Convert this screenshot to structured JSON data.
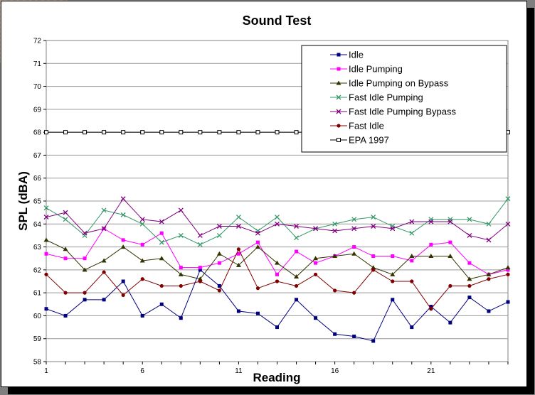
{
  "chart_data": {
    "type": "line",
    "title": "Sound Test",
    "xlabel": "Reading",
    "ylabel": "SPL (dBA)",
    "ylim": [
      58,
      72
    ],
    "y_ticks": [
      "58",
      "59",
      "60",
      "61",
      "62",
      "63",
      "64",
      "65",
      "66",
      "67",
      "68",
      "69",
      "70",
      "71",
      "72"
    ],
    "x": [
      1,
      2,
      3,
      4,
      5,
      6,
      7,
      8,
      9,
      10,
      11,
      12,
      13,
      14,
      15,
      16,
      17,
      18,
      19,
      20,
      21,
      22,
      23,
      24,
      25
    ],
    "x_tick_labels": [
      {
        "x": 1,
        "label": "1"
      },
      {
        "x": 6,
        "label": "6"
      },
      {
        "x": 11,
        "label": "11"
      },
      {
        "x": 16,
        "label": "16"
      },
      {
        "x": 21,
        "label": "21"
      }
    ],
    "grid": "horizontal",
    "legend_position": "top-right",
    "series": [
      {
        "name": "Idle",
        "color": "#000080",
        "marker": "square",
        "values": [
          60.3,
          60.0,
          60.7,
          60.7,
          61.5,
          60.0,
          60.5,
          59.9,
          62.0,
          61.3,
          60.2,
          60.1,
          59.5,
          60.7,
          59.9,
          59.2,
          59.1,
          58.9,
          60.7,
          59.5,
          60.4,
          59.7,
          60.8,
          60.2,
          60.6
        ]
      },
      {
        "name": "Idle Pumping",
        "color": "#ff00ff",
        "marker": "square",
        "values": [
          62.7,
          62.5,
          62.5,
          63.8,
          63.3,
          63.1,
          63.6,
          62.1,
          62.1,
          62.3,
          62.7,
          63.2,
          61.8,
          62.8,
          62.3,
          62.6,
          63.0,
          62.6,
          62.6,
          62.4,
          63.1,
          63.2,
          62.3,
          61.8,
          62.0
        ]
      },
      {
        "name": "Idle Pumping on Bypass",
        "color": "#333300",
        "marker": "triangle",
        "values": [
          63.3,
          62.9,
          62.0,
          62.4,
          63.0,
          62.4,
          62.5,
          61.8,
          61.6,
          62.7,
          62.2,
          63.0,
          62.3,
          61.7,
          62.5,
          62.6,
          62.7,
          62.1,
          61.8,
          62.6,
          62.6,
          62.6,
          61.6,
          61.8,
          62.1
        ]
      },
      {
        "name": "Fast Idle Pumping",
        "color": "#339966",
        "marker": "x",
        "values": [
          64.7,
          64.2,
          63.5,
          64.6,
          64.4,
          64.0,
          63.2,
          63.5,
          63.1,
          63.5,
          64.3,
          63.7,
          64.3,
          63.4,
          63.8,
          64.0,
          64.2,
          64.3,
          63.9,
          63.6,
          64.2,
          64.2,
          64.2,
          64.0,
          65.1
        ]
      },
      {
        "name": "Fast Idle Pumping Bypass",
        "color": "#800080",
        "marker": "x",
        "values": [
          64.3,
          64.5,
          63.6,
          63.8,
          65.1,
          64.2,
          64.1,
          64.6,
          63.5,
          63.9,
          63.9,
          63.6,
          64.0,
          63.9,
          63.8,
          63.7,
          63.8,
          63.9,
          63.8,
          64.1,
          64.1,
          64.1,
          63.5,
          63.3,
          64.0
        ]
      },
      {
        "name": "Fast Idle",
        "color": "#800000",
        "marker": "circle",
        "values": [
          61.8,
          61.0,
          61.0,
          61.9,
          60.9,
          61.6,
          61.3,
          61.3,
          61.5,
          61.1,
          62.9,
          61.2,
          61.5,
          61.3,
          61.8,
          61.1,
          61.0,
          62.0,
          61.5,
          61.5,
          60.3,
          61.3,
          61.3,
          61.6,
          61.8
        ]
      },
      {
        "name": "EPA 1997",
        "color": "#000000",
        "marker": "open-square",
        "values": [
          68,
          68,
          68,
          68,
          68,
          68,
          68,
          68,
          68,
          68,
          68,
          68,
          68,
          68,
          68,
          68,
          68,
          68,
          68,
          68,
          68,
          68,
          68,
          68,
          68
        ]
      }
    ]
  }
}
